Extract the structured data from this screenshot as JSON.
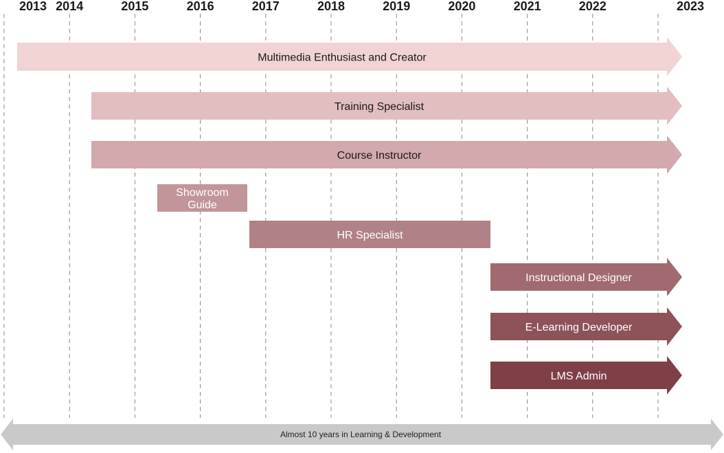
{
  "years": [
    "2013",
    "2014",
    "2015",
    "2016",
    "2017",
    "2018",
    "2019",
    "2020",
    "2021",
    "2022",
    "2023"
  ],
  "roles": [
    {
      "label": "Multimedia Enthusiast and Creator",
      "start": 2013,
      "end": 2023,
      "ongoing": true,
      "color": "#f1d3d4",
      "text_color": "#1a1a1a"
    },
    {
      "label": "Training Specialist",
      "start": 2014,
      "end": 2023,
      "ongoing": true,
      "color": "#e2bec0",
      "text_color": "#1a1a1a"
    },
    {
      "label": "Course Instructor",
      "start": 2014,
      "end": 2023,
      "ongoing": true,
      "color": "#d2a9ad",
      "text_color": "#1a1a1a"
    },
    {
      "label": "Showroom Guide",
      "start": 2015,
      "end": 2016,
      "ongoing": false,
      "color": "#c19599",
      "text_color": "#ffffff"
    },
    {
      "label": "HR Specialist",
      "start": 2016,
      "end": 2020,
      "ongoing": false,
      "color": "#b08186",
      "text_color": "#ffffff"
    },
    {
      "label": "Instructional Designer",
      "start": 2020,
      "end": 2023,
      "ongoing": true,
      "color": "#a06a70",
      "text_color": "#ffffff"
    },
    {
      "label": "E-Learning Developer",
      "start": 2020,
      "end": 2023,
      "ongoing": true,
      "color": "#8e5259",
      "text_color": "#ffffff"
    },
    {
      "label": "LMS Admin",
      "start": 2020,
      "end": 2023,
      "ongoing": true,
      "color": "#7f3f47",
      "text_color": "#ffffff"
    }
  ],
  "footer": {
    "label": "Almost 10 years in Learning & Development",
    "color": "#c9c9c9"
  },
  "gridline_color": "#888888"
}
